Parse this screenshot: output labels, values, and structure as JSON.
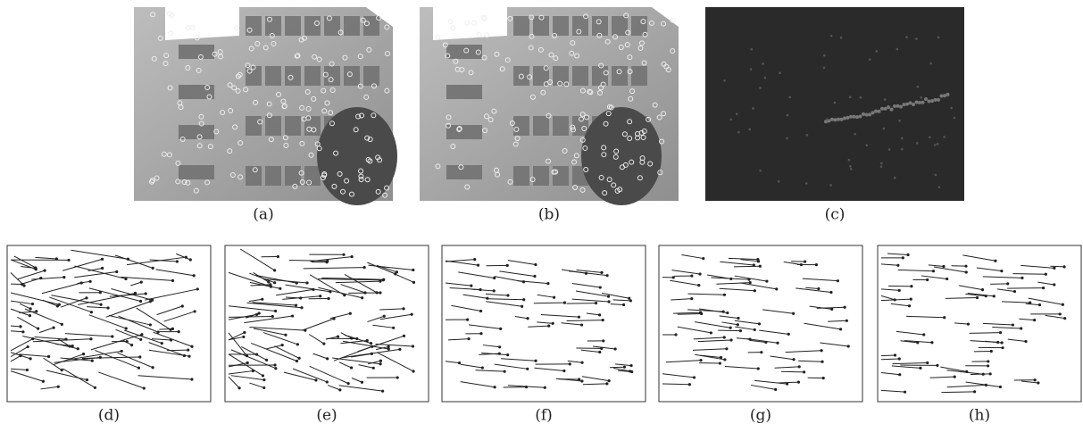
{
  "figure": {
    "panels": [
      {
        "label": "(a)"
      },
      {
        "label": "(b)"
      },
      {
        "label": "(c)"
      },
      {
        "label": "(d)"
      },
      {
        "label": "(e)"
      },
      {
        "label": "(f)"
      },
      {
        "label": "(g)"
      },
      {
        "label": "(h)"
      }
    ]
  }
}
